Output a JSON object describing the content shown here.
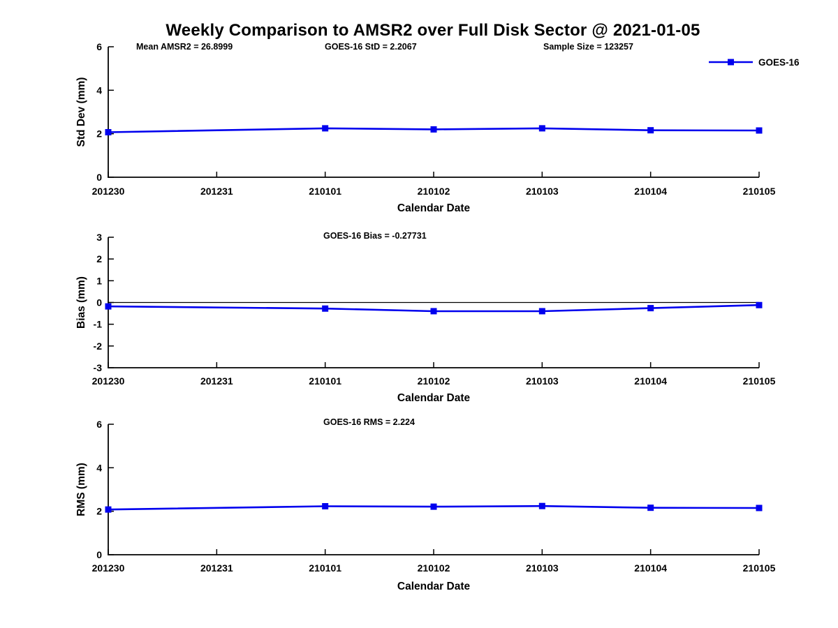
{
  "title": "Weekly Comparison to AMSR2 over Full Disk Sector @ 2021-01-05",
  "colors": {
    "series_blue": "#0000ee",
    "axis_black": "#000000",
    "background": "#ffffff"
  },
  "legend": {
    "label": "GOES-16"
  },
  "chart_data": [
    {
      "id": "std-dev-panel",
      "type": "line",
      "ylabel": "Std Dev (mm)",
      "xlabel": "Calendar Date",
      "ylim": [
        0,
        6
      ],
      "yticks": [
        0,
        2,
        4,
        6
      ],
      "ytick_labels": [
        "0",
        "2",
        "4",
        "6"
      ],
      "categories": [
        "201230",
        "201231",
        "210101",
        "210102",
        "210103",
        "210104",
        "210105"
      ],
      "grid": false,
      "legend_entries": [
        "GOES-16"
      ],
      "legend_position": "top-right-outside",
      "annotations": [
        "Mean AMSR2 = 26.8999",
        "GOES-16 StD = 2.2067",
        "Sample Size = 123257"
      ],
      "zero_line": false,
      "series": [
        {
          "name": "GOES-16",
          "color": "#0000ee",
          "marker": "square",
          "points": [
            {
              "x": "201230",
              "y": 2.07
            },
            {
              "x": "210101",
              "y": 2.25
            },
            {
              "x": "210102",
              "y": 2.2
            },
            {
              "x": "210103",
              "y": 2.25
            },
            {
              "x": "210104",
              "y": 2.16
            },
            {
              "x": "210105",
              "y": 2.15
            }
          ]
        }
      ]
    },
    {
      "id": "bias-panel",
      "type": "line",
      "ylabel": "Bias (mm)",
      "xlabel": "Calendar Date",
      "ylim": [
        -3,
        3
      ],
      "yticks": [
        -3,
        -2,
        -1,
        0,
        1,
        2,
        3
      ],
      "ytick_labels": [
        "-3",
        "-2",
        "-1",
        "0",
        "1",
        "2",
        "3"
      ],
      "categories": [
        "201230",
        "201231",
        "210101",
        "210102",
        "210103",
        "210104",
        "210105"
      ],
      "grid": false,
      "legend_entries": [],
      "annotations": [
        "GOES-16 Bias  = -0.27731"
      ],
      "zero_line": true,
      "series": [
        {
          "name": "GOES-16",
          "color": "#0000ee",
          "marker": "square",
          "points": [
            {
              "x": "201230",
              "y": -0.18
            },
            {
              "x": "210101",
              "y": -0.28
            },
            {
              "x": "210102",
              "y": -0.4
            },
            {
              "x": "210103",
              "y": -0.4
            },
            {
              "x": "210104",
              "y": -0.26
            },
            {
              "x": "210105",
              "y": -0.12
            }
          ]
        }
      ]
    },
    {
      "id": "rms-panel",
      "type": "line",
      "ylabel": "RMS (mm)",
      "xlabel": "Calendar Date",
      "ylim": [
        0,
        6
      ],
      "yticks": [
        0,
        2,
        4,
        6
      ],
      "ytick_labels": [
        "0",
        "2",
        "4",
        "6"
      ],
      "categories": [
        "201230",
        "201231",
        "210101",
        "210102",
        "210103",
        "210104",
        "210105"
      ],
      "grid": false,
      "legend_entries": [],
      "annotations": [
        "GOES-16 RMS = 2.224"
      ],
      "zero_line": false,
      "series": [
        {
          "name": "GOES-16",
          "color": "#0000ee",
          "marker": "square",
          "points": [
            {
              "x": "201230",
              "y": 2.08
            },
            {
              "x": "210101",
              "y": 2.23
            },
            {
              "x": "210102",
              "y": 2.21
            },
            {
              "x": "210103",
              "y": 2.24
            },
            {
              "x": "210104",
              "y": 2.16
            },
            {
              "x": "210105",
              "y": 2.15
            }
          ]
        }
      ]
    }
  ]
}
